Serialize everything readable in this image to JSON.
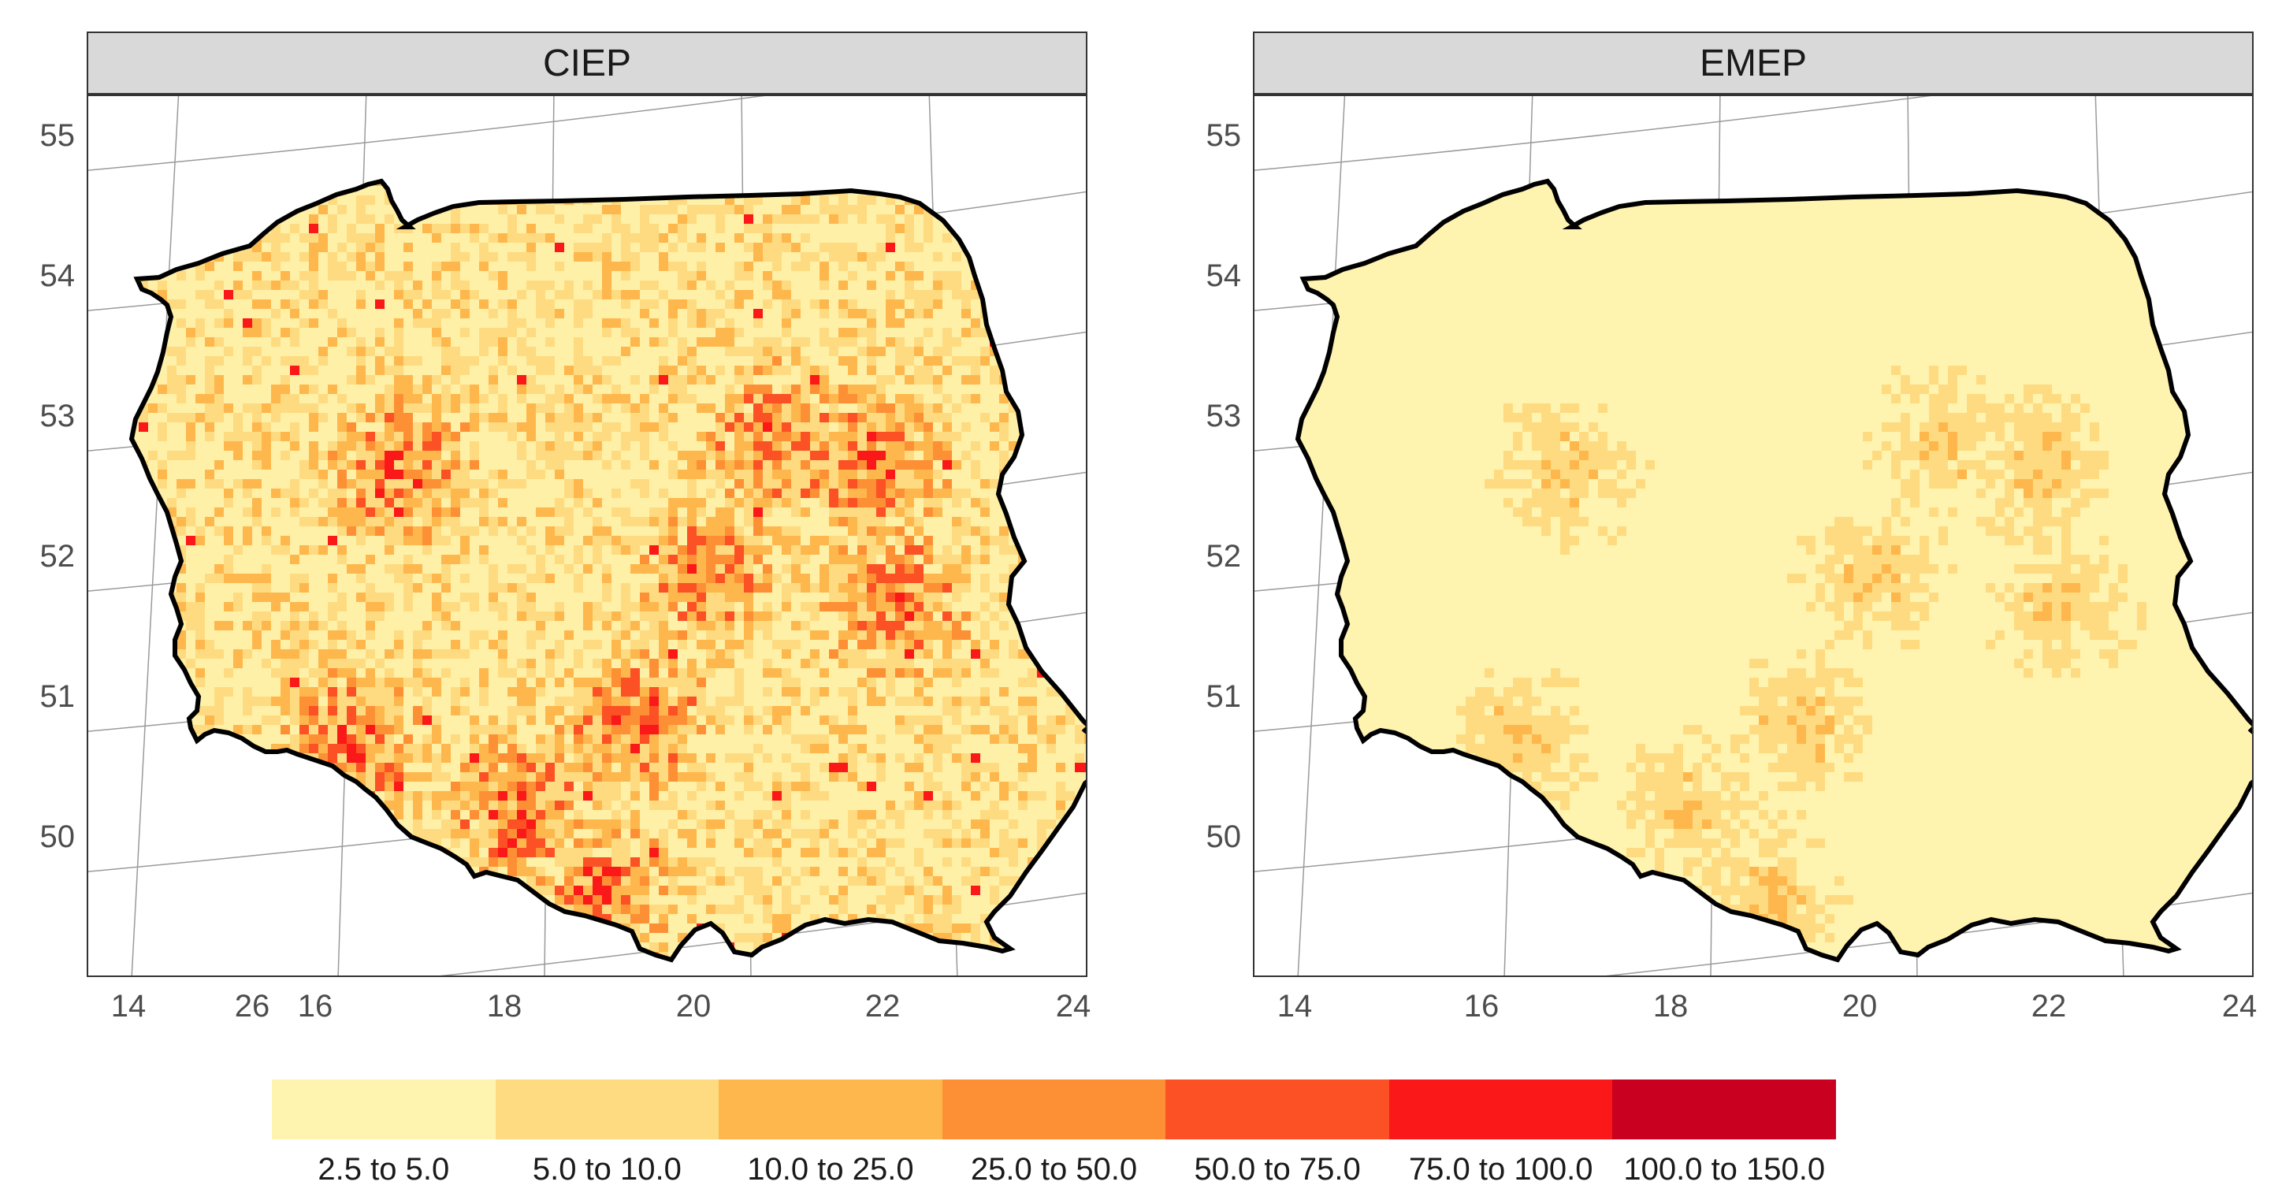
{
  "panels": [
    {
      "title": "CIEP"
    },
    {
      "title": "EMEP"
    }
  ],
  "y_ticks": [
    "55",
    "54",
    "53",
    "52",
    "51",
    "50"
  ],
  "x_ticks_left": [
    "14",
    "26",
    "16",
    "18",
    "20",
    "22",
    "24"
  ],
  "x_ticks_right": [
    "14",
    "16",
    "18",
    "20",
    "22",
    "24"
  ],
  "legend": {
    "items": [
      {
        "label": "2.5 to 5.0",
        "color": "#fff3b0"
      },
      {
        "label": "5.0 to 10.0",
        "color": "#fedb80"
      },
      {
        "label": "10.0 to 25.0",
        "color": "#feb74c"
      },
      {
        "label": "25.0 to 50.0",
        "color": "#fd9035"
      },
      {
        "label": "50.0 to 75.0",
        "color": "#fc5025"
      },
      {
        "label": "75.0 to 100.0",
        "color": "#fb1818"
      },
      {
        "label": "100.0 to 150.0",
        "color": "#c9001f"
      }
    ]
  }
}
